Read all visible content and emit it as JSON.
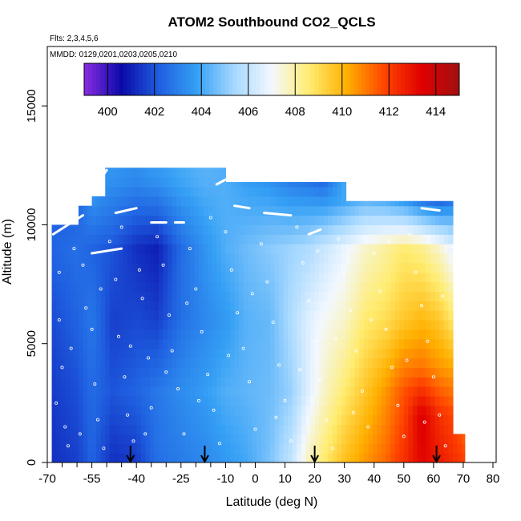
{
  "chart_data": {
    "type": "heatmap",
    "title": "ATOM2 Southbound CO2_QCLS",
    "flights_note": "Flts: 2,3,4,5,6",
    "date_note": "MMDD: 0129,0201,0203,0205,0210",
    "xlabel": "Latitude (deg N)",
    "ylabel": "Altitude (m)",
    "xlim": [
      -70,
      80
    ],
    "ylim": [
      0,
      17500
    ],
    "x_ticks": [
      -70,
      -55,
      -40,
      -25,
      -10,
      0,
      10,
      20,
      30,
      40,
      50,
      60,
      70,
      80
    ],
    "x_tick_labels": [
      "-70",
      "-55",
      "-40",
      "-25",
      "-10",
      "0",
      "10",
      "20",
      "30",
      "40",
      "50",
      "60",
      "70",
      "80"
    ],
    "x_minor_ticks": [
      -65,
      -60,
      -50,
      -45,
      -35,
      -30,
      -20,
      -15,
      -5
    ],
    "y_ticks": [
      0,
      5000,
      10000,
      15000
    ],
    "y_tick_labels": [
      "0",
      "5000",
      "10000",
      "15000"
    ],
    "colorbar": {
      "range": [
        399,
        415
      ],
      "tick_values": [
        400,
        402,
        404,
        406,
        408,
        410,
        412,
        414
      ],
      "tick_labels": [
        "400",
        "402",
        "404",
        "406",
        "408",
        "410",
        "412",
        "414"
      ],
      "colors": [
        "#8a2be2",
        "#0a0aa8",
        "#1f5fe0",
        "#35a0f5",
        "#a6d8ff",
        "#f3f8ff",
        "#ffec70",
        "#ffb000",
        "#ff4500",
        "#e00000",
        "#a01010"
      ]
    },
    "profile_markers_lat": [
      -42,
      -17,
      20,
      61
    ],
    "field": {
      "profiles": [
        {
          "lat": -68.5,
          "top": 10000,
          "values": [
            {
              "alt": 0,
              "v": 401.3
            },
            {
              "alt": 3000,
              "v": 401.5
            },
            {
              "alt": 6000,
              "v": 401.8
            },
            {
              "alt": 9000,
              "v": 402.3
            }
          ]
        },
        {
          "lat": -60,
          "top": 10800,
          "values": [
            {
              "alt": 0,
              "v": 401.6
            },
            {
              "alt": 3000,
              "v": 401.9
            },
            {
              "alt": 6000,
              "v": 402.3
            },
            {
              "alt": 9000,
              "v": 402.6
            },
            {
              "alt": 10800,
              "v": 402.3
            }
          ]
        },
        {
          "lat": -55,
          "top": 11200,
          "values": [
            {
              "alt": 0,
              "v": 402.3
            },
            {
              "alt": 3000,
              "v": 402.5
            },
            {
              "alt": 6000,
              "v": 402.8
            },
            {
              "alt": 9000,
              "v": 402.3
            },
            {
              "alt": 11200,
              "v": 403.5
            }
          ]
        },
        {
          "lat": -48,
          "top": 12400,
          "values": [
            {
              "alt": 0,
              "v": 401.3
            },
            {
              "alt": 3000,
              "v": 402.0
            },
            {
              "alt": 6000,
              "v": 401.6
            },
            {
              "alt": 9000,
              "v": 402.0
            },
            {
              "alt": 12000,
              "v": 403.5
            }
          ]
        },
        {
          "lat": -40,
          "top": 12400,
          "values": [
            {
              "alt": 0,
              "v": 401.5
            },
            {
              "alt": 3000,
              "v": 402.3
            },
            {
              "alt": 6000,
              "v": 401.8
            },
            {
              "alt": 9000,
              "v": 401.3
            },
            {
              "alt": 12000,
              "v": 403.3
            }
          ]
        },
        {
          "lat": -33,
          "top": 12400,
          "values": [
            {
              "alt": 0,
              "v": 402.6
            },
            {
              "alt": 3000,
              "v": 402.8
            },
            {
              "alt": 6000,
              "v": 401.6
            },
            {
              "alt": 9000,
              "v": 401.0
            },
            {
              "alt": 12000,
              "v": 403.6
            }
          ]
        },
        {
          "lat": -25,
          "top": 12400,
          "values": [
            {
              "alt": 0,
              "v": 402.9
            },
            {
              "alt": 3000,
              "v": 403.3
            },
            {
              "alt": 6000,
              "v": 402.6
            },
            {
              "alt": 9000,
              "v": 402.5
            },
            {
              "alt": 12000,
              "v": 404.0
            }
          ]
        },
        {
          "lat": -17,
          "top": 12400,
          "values": [
            {
              "alt": 0,
              "v": 403.2
            },
            {
              "alt": 3000,
              "v": 403.7
            },
            {
              "alt": 6000,
              "v": 403.2
            },
            {
              "alt": 9000,
              "v": 403.5
            },
            {
              "alt": 12000,
              "v": 404.3
            }
          ]
        },
        {
          "lat": -10,
          "top": 12000,
          "values": [
            {
              "alt": 0,
              "v": 403.6
            },
            {
              "alt": 3000,
              "v": 404.2
            },
            {
              "alt": 6000,
              "v": 403.6
            },
            {
              "alt": 9000,
              "v": 404.2
            },
            {
              "alt": 12000,
              "v": 404.2
            }
          ]
        },
        {
          "lat": -3,
          "top": 11800,
          "values": [
            {
              "alt": 0,
              "v": 404.0
            },
            {
              "alt": 3000,
              "v": 404.4
            },
            {
              "alt": 6000,
              "v": 404.3
            },
            {
              "alt": 9000,
              "v": 404.6
            },
            {
              "alt": 11800,
              "v": 403.8
            }
          ]
        },
        {
          "lat": 5,
          "top": 11800,
          "values": [
            {
              "alt": 0,
              "v": 404.8
            },
            {
              "alt": 3000,
              "v": 404.6
            },
            {
              "alt": 6000,
              "v": 404.5
            },
            {
              "alt": 9000,
              "v": 405.0
            },
            {
              "alt": 11800,
              "v": 403.5
            }
          ]
        },
        {
          "lat": 12,
          "top": 11800,
          "values": [
            {
              "alt": 0,
              "v": 406.0
            },
            {
              "alt": 3000,
              "v": 405.2
            },
            {
              "alt": 6000,
              "v": 405.6
            },
            {
              "alt": 9000,
              "v": 405.3
            },
            {
              "alt": 11800,
              "v": 403.0
            }
          ]
        },
        {
          "lat": 18,
          "top": 11800,
          "values": [
            {
              "alt": 0,
              "v": 407.8
            },
            {
              "alt": 3000,
              "v": 406.6
            },
            {
              "alt": 6000,
              "v": 406.6
            },
            {
              "alt": 9000,
              "v": 405.6
            },
            {
              "alt": 11800,
              "v": 402.8
            }
          ]
        },
        {
          "lat": 23,
          "top": 11800,
          "values": [
            {
              "alt": 0,
              "v": 408.6
            },
            {
              "alt": 3000,
              "v": 407.6
            },
            {
              "alt": 6000,
              "v": 407.1
            },
            {
              "alt": 9000,
              "v": 406.1
            },
            {
              "alt": 11800,
              "v": 402.5
            }
          ]
        },
        {
          "lat": 30,
          "top": 11000,
          "values": [
            {
              "alt": 0,
              "v": 409.8
            },
            {
              "alt": 3000,
              "v": 408.6
            },
            {
              "alt": 6000,
              "v": 407.6
            },
            {
              "alt": 9000,
              "v": 406.8
            },
            {
              "alt": 11000,
              "v": 404.0
            }
          ]
        },
        {
          "lat": 37,
          "top": 11000,
          "values": [
            {
              "alt": 0,
              "v": 410.6
            },
            {
              "alt": 3000,
              "v": 409.6
            },
            {
              "alt": 6000,
              "v": 408.6
            },
            {
              "alt": 9000,
              "v": 407.6
            },
            {
              "alt": 11000,
              "v": 404.5
            }
          ]
        },
        {
          "lat": 44,
          "top": 11000,
          "values": [
            {
              "alt": 0,
              "v": 411.3
            },
            {
              "alt": 3000,
              "v": 410.6
            },
            {
              "alt": 6000,
              "v": 409.0
            },
            {
              "alt": 9000,
              "v": 408.1
            },
            {
              "alt": 11000,
              "v": 404.3
            }
          ]
        },
        {
          "lat": 50,
          "top": 11000,
          "values": [
            {
              "alt": 0,
              "v": 412.3
            },
            {
              "alt": 3000,
              "v": 411.6
            },
            {
              "alt": 6000,
              "v": 409.6
            },
            {
              "alt": 9000,
              "v": 408.6
            },
            {
              "alt": 11000,
              "v": 403.8
            }
          ]
        },
        {
          "lat": 56,
          "top": 11000,
          "values": [
            {
              "alt": 0,
              "v": 413.3
            },
            {
              "alt": 2000,
              "v": 413.6
            },
            {
              "alt": 4000,
              "v": 411.1
            },
            {
              "alt": 6000,
              "v": 410.0
            },
            {
              "alt": 9000,
              "v": 408.3
            },
            {
              "alt": 11000,
              "v": 403.0
            }
          ]
        },
        {
          "lat": 62,
          "top": 11000,
          "values": [
            {
              "alt": 0,
              "v": 412.8
            },
            {
              "alt": 2000,
              "v": 412.3
            },
            {
              "alt": 4000,
              "v": 410.6
            },
            {
              "alt": 6000,
              "v": 409.6
            },
            {
              "alt": 9000,
              "v": 407.6
            },
            {
              "alt": 11000,
              "v": 402.5
            }
          ]
        },
        {
          "lat": 67,
          "top": 11000,
          "values": [
            {
              "alt": 0,
              "v": 412.3
            },
            {
              "alt": 2000,
              "v": 411.8
            },
            {
              "alt": 4000,
              "v": 410.3
            },
            {
              "alt": 6000,
              "v": 408.6
            },
            {
              "alt": 9000,
              "v": 406.6
            },
            {
              "alt": 11000,
              "v": 403.0
            }
          ]
        },
        {
          "lat": 70.5,
          "top": 1000,
          "values": [
            {
              "alt": 0,
              "v": 412.0
            },
            {
              "alt": 1000,
              "v": 411.5
            }
          ]
        }
      ],
      "cut_regions": [
        {
          "lat_range": [
            67,
            70.5
          ],
          "alt_range": [
            0,
            1000
          ]
        }
      ],
      "top_caps": [
        {
          "lat_range": [
            -68.5,
            -60
          ],
          "top": 10000
        },
        {
          "lat_range": [
            -60,
            -55
          ],
          "top": 10800
        },
        {
          "lat_range": [
            -55,
            -50
          ],
          "top": 11200
        },
        {
          "lat_range": [
            -50,
            -10
          ],
          "top": 12400
        },
        {
          "lat_range": [
            -10,
            30
          ],
          "top": 11800
        },
        {
          "lat_range": [
            30,
            70.5
          ],
          "top": 11000
        }
      ]
    },
    "flight_tracks": [
      [
        [
          -68,
          9600
        ],
        [
          -63,
          10000
        ],
        [
          -58,
          10400
        ]
      ],
      [
        [
          -55,
          11400
        ],
        [
          -50,
          12300
        ]
      ],
      [
        [
          -55,
          8800
        ],
        [
          -45,
          9000
        ]
      ],
      [
        [
          -47,
          10500
        ],
        [
          -40,
          10700
        ]
      ],
      [
        [
          -35,
          10100
        ],
        [
          -30,
          10100
        ]
      ],
      [
        [
          -27,
          10100
        ],
        [
          -24,
          10100
        ]
      ],
      [
        [
          -13,
          11700
        ],
        [
          -10,
          11900
        ]
      ],
      [
        [
          -7,
          10800
        ],
        [
          -2,
          10700
        ]
      ],
      [
        [
          3,
          10500
        ],
        [
          12,
          10400
        ]
      ],
      [
        [
          18,
          9600
        ],
        [
          22,
          9800
        ]
      ],
      [
        [
          56,
          10700
        ],
        [
          62,
          10600
        ]
      ]
    ],
    "sample_points": [
      [
        -66,
        8000
      ],
      [
        -66,
        6000
      ],
      [
        -65,
        4000
      ],
      [
        -64,
        1500
      ],
      [
        -63,
        700
      ],
      [
        -61,
        9000
      ],
      [
        -58,
        8300
      ],
      [
        -57,
        6500
      ],
      [
        -55,
        5600
      ],
      [
        -54,
        3300
      ],
      [
        -53,
        1800
      ],
      [
        -51,
        600
      ],
      [
        -49,
        9300
      ],
      [
        -47,
        7700
      ],
      [
        -46,
        5300
      ],
      [
        -44,
        3600
      ],
      [
        -43,
        2000
      ],
      [
        -41,
        900
      ],
      [
        -39,
        8100
      ],
      [
        -38,
        6900
      ],
      [
        -36,
        4400
      ],
      [
        -35,
        2300
      ],
      [
        -33,
        9500
      ],
      [
        -31,
        8300
      ],
      [
        -29,
        6200
      ],
      [
        -28,
        4700
      ],
      [
        -26,
        3100
      ],
      [
        -24,
        1200
      ],
      [
        -22,
        9000
      ],
      [
        -20,
        7300
      ],
      [
        -18,
        5500
      ],
      [
        -16,
        3700
      ],
      [
        -14,
        2200
      ],
      [
        -12,
        800
      ],
      [
        -10,
        9700
      ],
      [
        -8,
        8100
      ],
      [
        -6,
        6300
      ],
      [
        -4,
        4800
      ],
      [
        -2,
        3400
      ],
      [
        0,
        1400
      ],
      [
        2,
        9200
      ],
      [
        4,
        7600
      ],
      [
        6,
        5900
      ],
      [
        8,
        4100
      ],
      [
        10,
        2600
      ],
      [
        12,
        900
      ],
      [
        14,
        9900
      ],
      [
        16,
        8400
      ],
      [
        18,
        6800
      ],
      [
        20,
        5100
      ],
      [
        22,
        3500
      ],
      [
        24,
        1800
      ],
      [
        26,
        600
      ],
      [
        28,
        9400
      ],
      [
        30,
        7900
      ],
      [
        32,
        6400
      ],
      [
        34,
        4700
      ],
      [
        36,
        3000
      ],
      [
        38,
        1500
      ],
      [
        40,
        8800
      ],
      [
        42,
        7200
      ],
      [
        44,
        5600
      ],
      [
        46,
        4000
      ],
      [
        48,
        2400
      ],
      [
        50,
        1100
      ],
      [
        52,
        9600
      ],
      [
        54,
        8000
      ],
      [
        56,
        6600
      ],
      [
        58,
        5100
      ],
      [
        60,
        3600
      ],
      [
        62,
        2000
      ],
      [
        64,
        700
      ],
      [
        66,
        9100
      ],
      [
        -67,
        2500
      ],
      [
        -62,
        4800
      ],
      [
        -59,
        1200
      ],
      [
        -52,
        7300
      ],
      [
        -45,
        9900
      ],
      [
        -42,
        4900
      ],
      [
        -37,
        1200
      ],
      [
        -30,
        3800
      ],
      [
        -23,
        6700
      ],
      [
        -15,
        10300
      ],
      [
        -9,
        4500
      ],
      [
        -1,
        7100
      ],
      [
        7,
        1900
      ],
      [
        15,
        3900
      ],
      [
        21,
        8900
      ],
      [
        27,
        5200
      ],
      [
        33,
        2100
      ],
      [
        39,
        6000
      ],
      [
        45,
        9300
      ],
      [
        51,
        4300
      ],
      [
        57,
        1700
      ],
      [
        63,
        7000
      ],
      [
        -19,
        2600
      ]
    ]
  }
}
